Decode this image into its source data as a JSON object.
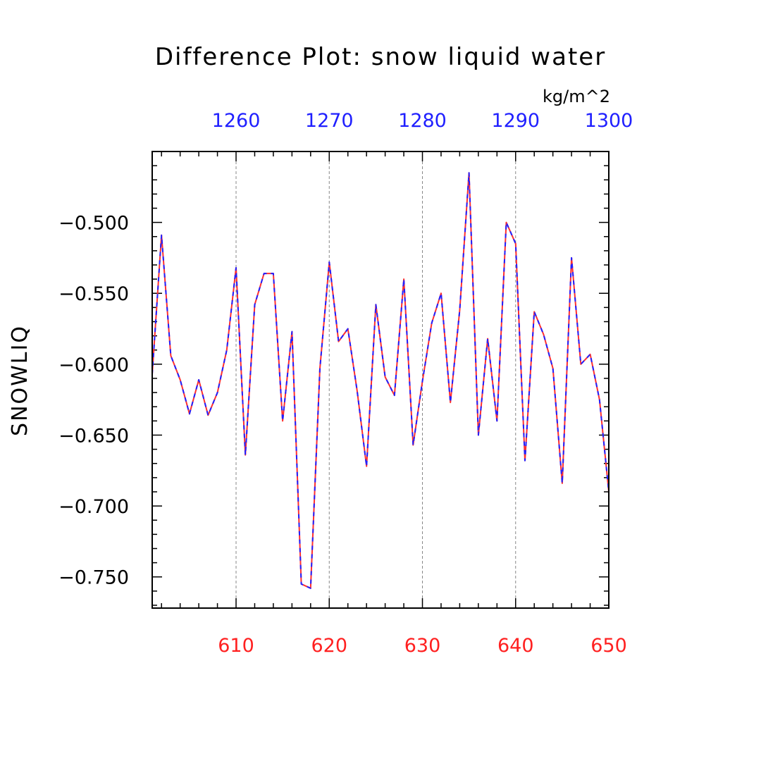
{
  "chart_data": {
    "type": "line",
    "title": "Difference Plot: snow liquid water",
    "units": "kg/m^2",
    "ylabel": "SNOWLIQ",
    "xlabel": "",
    "colors": {
      "bottom_axis": "#ff2020",
      "top_axis": "#2020ff",
      "series_1": "#ff3030",
      "series_2": "#2020ff",
      "grid": "#888888"
    },
    "bottom_axis": {
      "ticks": [
        610,
        620,
        630,
        640,
        650
      ],
      "range": [
        601,
        650
      ]
    },
    "top_axis": {
      "ticks": [
        1260,
        1270,
        1280,
        1290,
        1300
      ],
      "range": [
        1251,
        1300
      ]
    },
    "yticks": [
      -0.5,
      -0.55,
      -0.6,
      -0.65,
      -0.7,
      -0.75
    ],
    "ytick_labels": [
      "−0.500",
      "−0.550",
      "−0.600",
      "−0.650",
      "−0.700",
      "−0.750"
    ],
    "ylim": [
      -0.772,
      -0.45
    ],
    "grid": "vertical dashed at major x ticks",
    "x": [
      601,
      602,
      603,
      604,
      605,
      606,
      607,
      608,
      609,
      610,
      611,
      612,
      613,
      614,
      615,
      616,
      617,
      618,
      619,
      620,
      621,
      622,
      623,
      624,
      625,
      626,
      627,
      628,
      629,
      630,
      631,
      632,
      633,
      634,
      635,
      636,
      637,
      638,
      639,
      640,
      641,
      642,
      643,
      644,
      645,
      646,
      647,
      648,
      649,
      650
    ],
    "series": [
      {
        "line_style": "solid",
        "values": [
          -0.607,
          -0.509,
          -0.594,
          -0.611,
          -0.635,
          -0.611,
          -0.636,
          -0.62,
          -0.59,
          -0.532,
          -0.664,
          -0.558,
          -0.536,
          -0.536,
          -0.64,
          -0.577,
          -0.755,
          -0.758,
          -0.603,
          -0.528,
          -0.584,
          -0.575,
          -0.619,
          -0.672,
          -0.558,
          -0.609,
          -0.622,
          -0.54,
          -0.657,
          -0.612,
          -0.571,
          -0.55,
          -0.627,
          -0.562,
          -0.465,
          -0.65,
          -0.582,
          -0.64,
          -0.5,
          -0.515,
          -0.668,
          -0.563,
          -0.579,
          -0.603,
          -0.684,
          -0.525,
          -0.6,
          -0.593,
          -0.625,
          -0.69
        ]
      },
      {
        "line_style": "dashed",
        "values": [
          -0.607,
          -0.509,
          -0.594,
          -0.611,
          -0.635,
          -0.611,
          -0.636,
          -0.62,
          -0.59,
          -0.532,
          -0.664,
          -0.558,
          -0.536,
          -0.536,
          -0.64,
          -0.577,
          -0.755,
          -0.758,
          -0.603,
          -0.528,
          -0.584,
          -0.575,
          -0.619,
          -0.672,
          -0.558,
          -0.609,
          -0.622,
          -0.54,
          -0.657,
          -0.612,
          -0.571,
          -0.55,
          -0.627,
          -0.562,
          -0.465,
          -0.65,
          -0.582,
          -0.64,
          -0.5,
          -0.515,
          -0.668,
          -0.563,
          -0.579,
          -0.603,
          -0.684,
          -0.525,
          -0.6,
          -0.593,
          -0.625,
          -0.69
        ]
      }
    ]
  }
}
